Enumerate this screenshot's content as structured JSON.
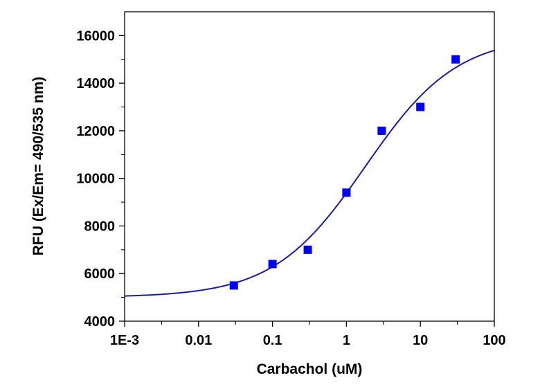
{
  "chart_data": {
    "type": "scatter",
    "title": "",
    "xlabel": "Carbachol (uM)",
    "ylabel": "RFU (Ex/Em= 490/535 nm)",
    "xscale": "log",
    "xlim": [
      0.001,
      100
    ],
    "ylim": [
      4000,
      17000
    ],
    "x_ticks": [
      0.001,
      0.01,
      0.1,
      1,
      10,
      100
    ],
    "x_tick_labels": [
      "1E-3",
      "0.01",
      "0.1",
      "1",
      "10",
      "100"
    ],
    "y_ticks": [
      4000,
      6000,
      8000,
      10000,
      12000,
      14000,
      16000
    ],
    "y_tick_labels": [
      "4000",
      "6000",
      "8000",
      "10000",
      "12000",
      "14000",
      "16000"
    ],
    "grid": false,
    "legend": "none",
    "series": [
      {
        "kind": "points",
        "marker": "square",
        "color": "#0000ff",
        "x": [
          0.03,
          0.1,
          0.3,
          1,
          3,
          10,
          30
        ],
        "y": [
          5500,
          6400,
          7000,
          9400,
          12000,
          13000,
          15000
        ]
      },
      {
        "kind": "fit-curve",
        "model": "four-parameter logistic",
        "color": "#1a1aa8",
        "bottom": 5000,
        "top": 16000,
        "ec50": 1.8,
        "hill": 0.7
      }
    ]
  }
}
